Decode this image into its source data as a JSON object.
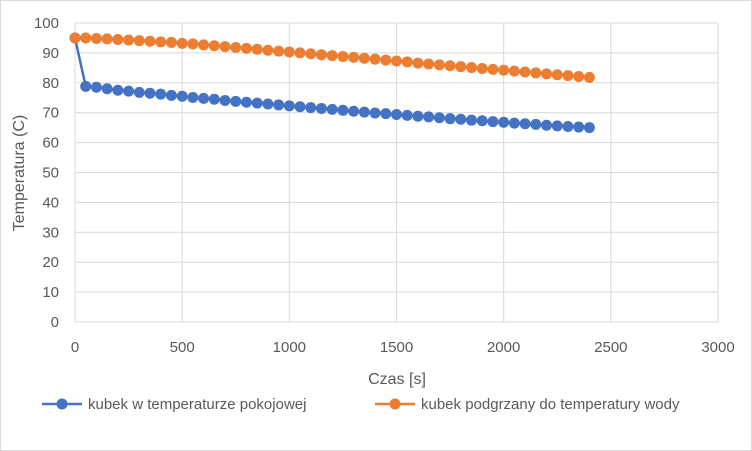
{
  "chart_data": {
    "type": "line",
    "title": "",
    "xlabel": "Czas [s]",
    "ylabel": "Temperatura (C)",
    "xlim": [
      0,
      3000
    ],
    "ylim": [
      0,
      100
    ],
    "xticks": [
      0,
      500,
      1000,
      1500,
      2000,
      2500,
      3000
    ],
    "yticks": [
      0,
      10,
      20,
      30,
      40,
      50,
      60,
      70,
      80,
      90,
      100
    ],
    "grid": true,
    "legend_position": "bottom",
    "x": [
      0,
      50,
      100,
      150,
      200,
      250,
      300,
      350,
      400,
      450,
      500,
      550,
      600,
      650,
      700,
      750,
      800,
      850,
      900,
      950,
      1000,
      1050,
      1100,
      1150,
      1200,
      1250,
      1300,
      1350,
      1400,
      1450,
      1500,
      1550,
      1600,
      1650,
      1700,
      1750,
      1800,
      1850,
      1900,
      1950,
      2000,
      2050,
      2100,
      2150,
      2200,
      2250,
      2300,
      2350,
      2400
    ],
    "series": [
      {
        "name": "kubek w temperaturze pokojowej",
        "color": "#4472c4",
        "values": [
          95,
          78.8,
          78.5,
          78.0,
          77.5,
          77.2,
          76.8,
          76.5,
          76.2,
          75.8,
          75.5,
          75.1,
          74.8,
          74.5,
          74.1,
          73.8,
          73.5,
          73.2,
          72.9,
          72.6,
          72.3,
          72.0,
          71.7,
          71.4,
          71.1,
          70.8,
          70.5,
          70.2,
          69.9,
          69.7,
          69.4,
          69.1,
          68.8,
          68.6,
          68.3,
          68.0,
          67.8,
          67.5,
          67.3,
          67.0,
          66.8,
          66.5,
          66.3,
          66.1,
          65.8,
          65.6,
          65.4,
          65.2,
          65.0
        ]
      },
      {
        "name": "kubek podgrzany do temperatury wody",
        "color": "#ed7d31",
        "values": [
          95,
          95.0,
          94.8,
          94.7,
          94.5,
          94.3,
          94.1,
          93.9,
          93.7,
          93.5,
          93.2,
          93.0,
          92.7,
          92.4,
          92.1,
          91.8,
          91.5,
          91.2,
          90.9,
          90.6,
          90.3,
          90.0,
          89.7,
          89.4,
          89.1,
          88.8,
          88.5,
          88.2,
          87.9,
          87.6,
          87.3,
          87.0,
          86.6,
          86.3,
          86.0,
          85.7,
          85.4,
          85.1,
          84.8,
          84.5,
          84.2,
          83.9,
          83.6,
          83.3,
          83.0,
          82.7,
          82.4,
          82.1,
          81.8
        ]
      }
    ]
  }
}
